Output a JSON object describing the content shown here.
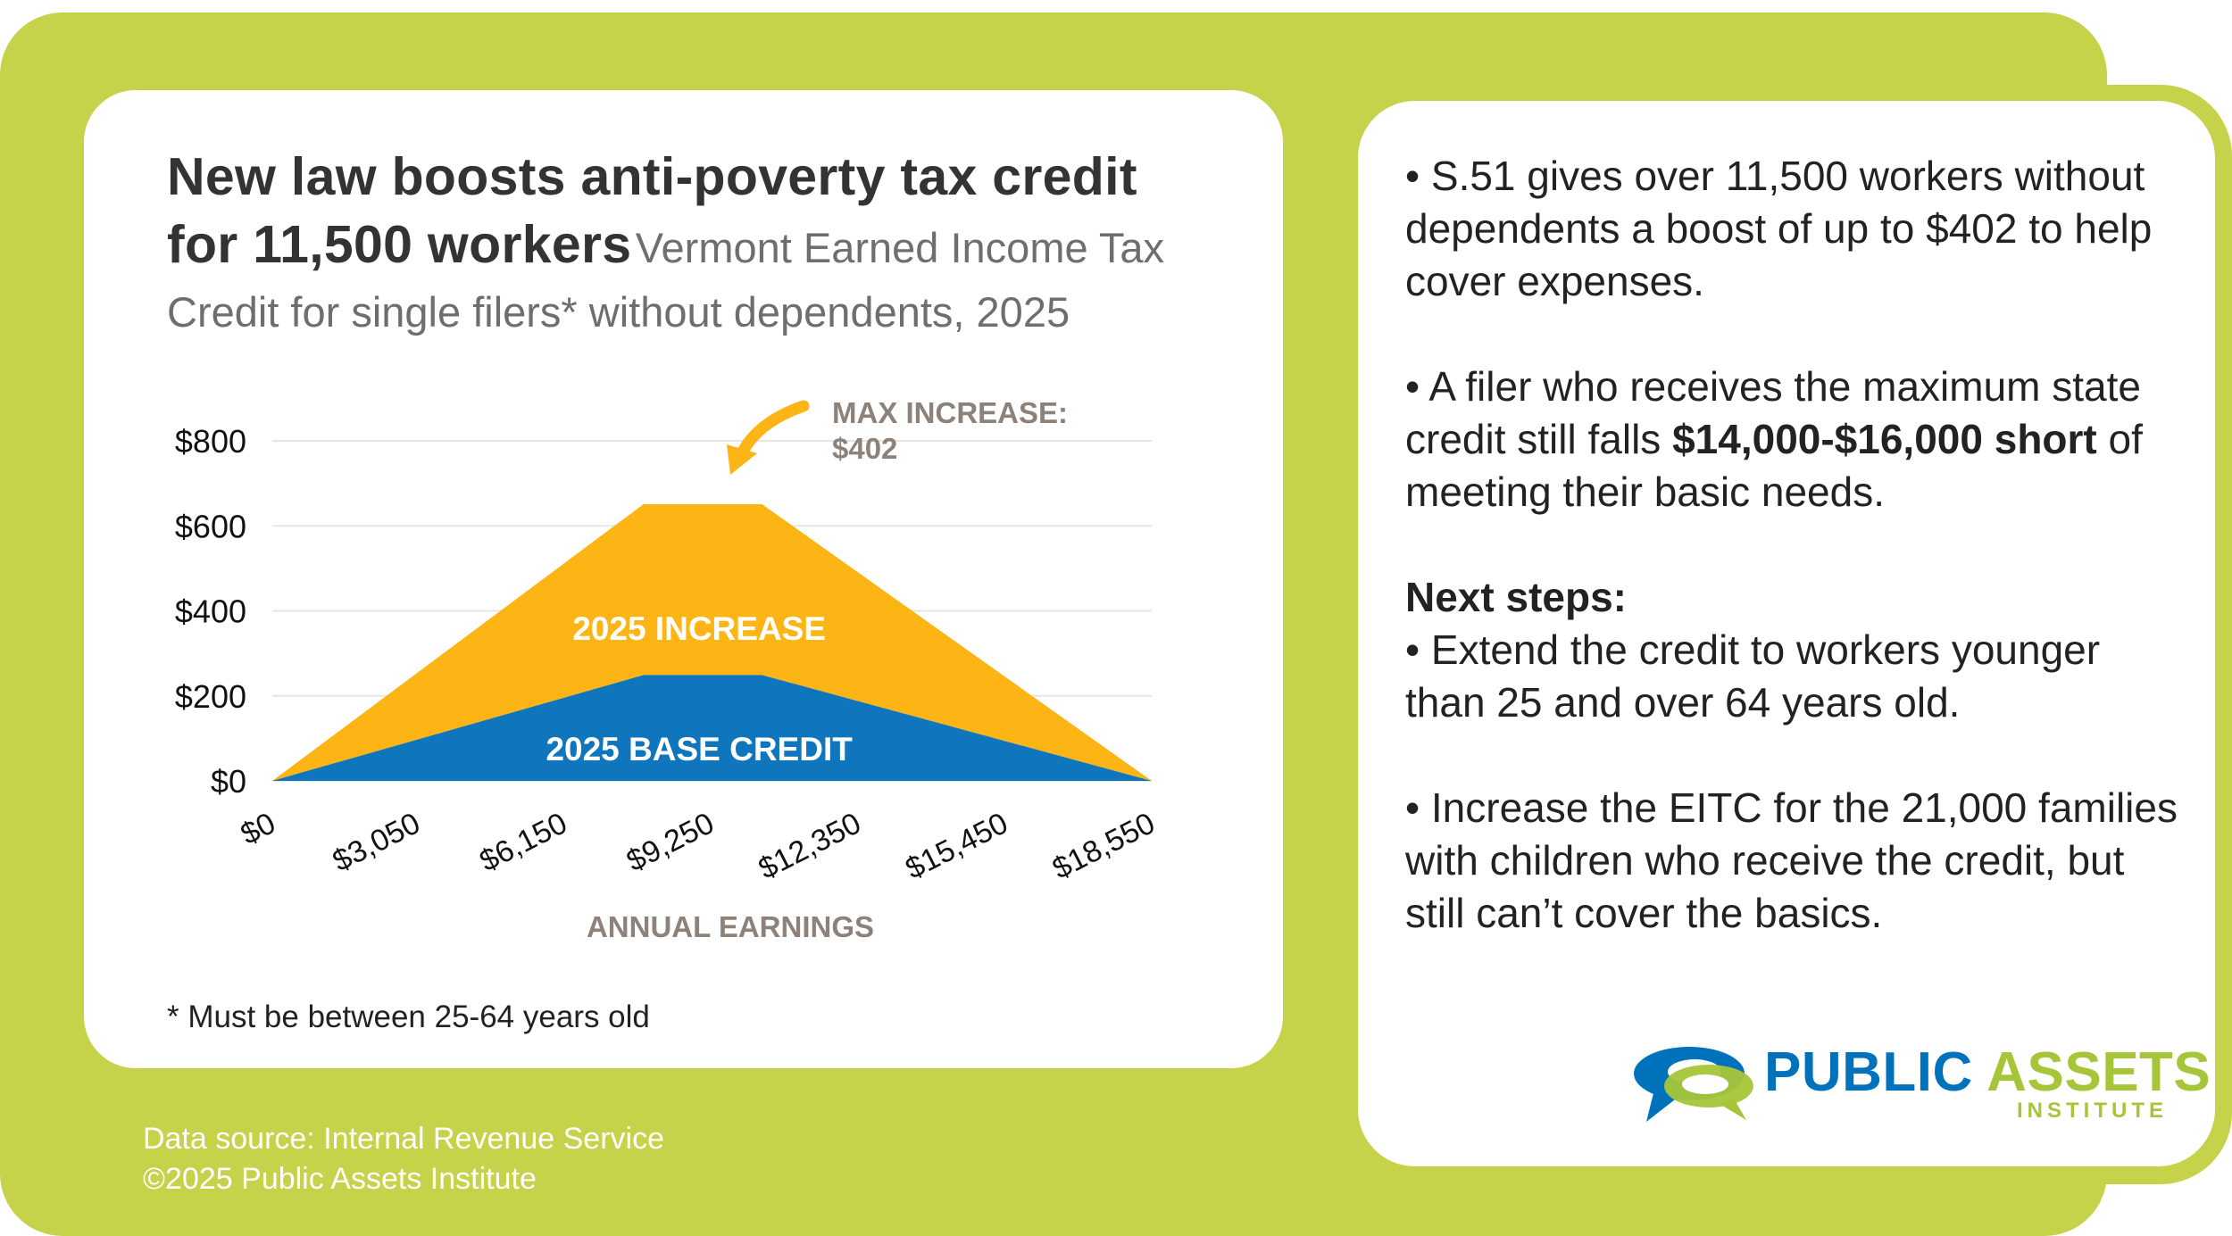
{
  "colors": {
    "frame": "#c5d24a",
    "increase": "#fdb515",
    "base": "#0f75bc",
    "axis_title": "#8c8279",
    "grid": "#e6e6e6"
  },
  "title": {
    "main": "New law boosts anti-poverty tax credit for 11,500 workers",
    "sub": "Vermont Earned Income Tax Credit for single filers* without dependents, 2025"
  },
  "chart_data": {
    "type": "area",
    "x": [
      0,
      7830,
      10330,
      18550
    ],
    "x_ticks": [
      "$0",
      "$3,050",
      "$6,150",
      "$9,250",
      "$12,350",
      "$15,450",
      "$18,550"
    ],
    "x_tick_values": [
      0,
      3050,
      6150,
      9250,
      12350,
      15450,
      18550
    ],
    "y_ticks": [
      "$800",
      "$600",
      "$400",
      "$200",
      "$0"
    ],
    "y_tick_values": [
      800,
      600,
      400,
      200,
      0
    ],
    "ylim": [
      0,
      800
    ],
    "xlim": [
      0,
      18550
    ],
    "xlabel": "ANNUAL EARNINGS",
    "stacking": "stacked",
    "series": [
      {
        "name": "2025 BASE CREDIT",
        "values": [
          0,
          249,
          249,
          0
        ]
      },
      {
        "name": "2025 INCREASE",
        "values": [
          0,
          402,
          402,
          0
        ]
      }
    ],
    "annotation": {
      "line1": "MAX INCREASE:",
      "line2": "$402"
    },
    "grid": true
  },
  "footnote": "* Must be between 25-64 years old",
  "source": {
    "line1": "Data source: Internal Revenue Service",
    "line2": "©2025 Public Assets Institute"
  },
  "bullets": {
    "b1": "• S.51 gives over 11,500 workers without dependents a boost of up to $402 to help cover expenses.",
    "b2_pre": "• A filer who receives the maximum state credit still falls ",
    "b2_bold": "$14,000-$16,000 short",
    "b2_post": " of meeting their basic needs.",
    "next_heading": "Next steps:",
    "b3": "• Extend the credit to workers younger than 25 and over 64 years old.",
    "b4": "• Increase the EITC for the 21,000 families with children who receive the credit, but still can’t cover the basics."
  },
  "logo": {
    "name_1": "PUBLIC",
    "name_2": "ASSETS",
    "sub": "INSTITUTE",
    "icon": "speech-bubbles-logo-icon"
  }
}
